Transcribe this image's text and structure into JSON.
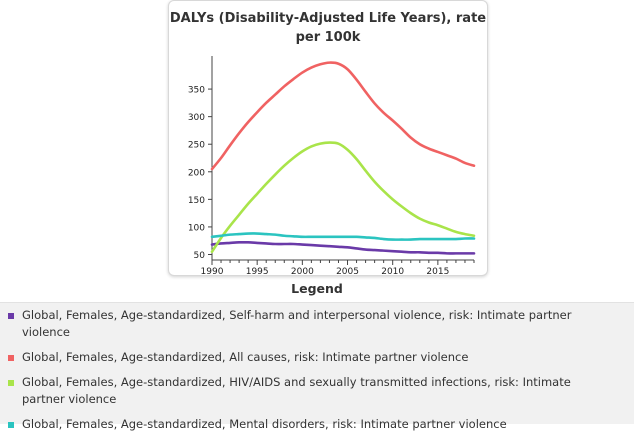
{
  "chart_data": {
    "type": "line",
    "title": "DALYs (Disability-Adjusted Life Years), rate per 100k",
    "xlabel": "",
    "ylabel": "",
    "xlim": [
      1990,
      2019
    ],
    "ylim": [
      40,
      410
    ],
    "xticks": [
      1990,
      1995,
      2000,
      2005,
      2010,
      2015
    ],
    "yticks": [
      50,
      100,
      150,
      200,
      250,
      300,
      350
    ],
    "legend_title": "Legend",
    "x": [
      1990,
      1991,
      1992,
      1993,
      1994,
      1995,
      1996,
      1997,
      1998,
      1999,
      2000,
      2001,
      2002,
      2003,
      2004,
      2005,
      2006,
      2007,
      2008,
      2009,
      2010,
      2011,
      2012,
      2013,
      2014,
      2015,
      2016,
      2017,
      2018,
      2019
    ],
    "series": [
      {
        "name": "Global, Females, Age-standardized, Self-harm and interpersonal violence, risk: Intimate partner violence",
        "color": "#6a3aa8",
        "values": [
          68,
          70,
          71,
          72,
          72,
          71,
          70,
          69,
          69,
          69,
          68,
          67,
          66,
          65,
          64,
          63,
          61,
          59,
          58,
          57,
          56,
          55,
          54,
          54,
          53,
          53,
          52,
          52,
          52,
          52
        ]
      },
      {
        "name": "Global, Females, Age-standardized, All causes, risk: Intimate partner violence",
        "color": "#f06262",
        "values": [
          205,
          225,
          248,
          270,
          290,
          308,
          325,
          340,
          355,
          368,
          380,
          389,
          395,
          398,
          396,
          386,
          367,
          345,
          324,
          307,
          293,
          278,
          262,
          250,
          242,
          236,
          230,
          224,
          216,
          211
        ]
      },
      {
        "name": "Global, Females, Age-standardized, HIV/AIDS and sexually transmitted infections, risk: Intimate partner violence",
        "color": "#a9e44a",
        "values": [
          55,
          80,
          102,
          122,
          142,
          160,
          178,
          195,
          211,
          225,
          237,
          246,
          251,
          253,
          251,
          240,
          223,
          202,
          182,
          165,
          150,
          137,
          125,
          115,
          108,
          103,
          97,
          91,
          87,
          84
        ]
      },
      {
        "name": "Global, Females, Age-standardized, Mental disorders, risk: Intimate partner violence",
        "color": "#2bc4c0",
        "values": [
          82,
          84,
          86,
          87,
          88,
          88,
          87,
          86,
          84,
          83,
          82,
          82,
          82,
          82,
          82,
          82,
          82,
          81,
          80,
          78,
          77,
          77,
          77,
          78,
          78,
          78,
          78,
          78,
          79,
          79
        ]
      }
    ]
  }
}
